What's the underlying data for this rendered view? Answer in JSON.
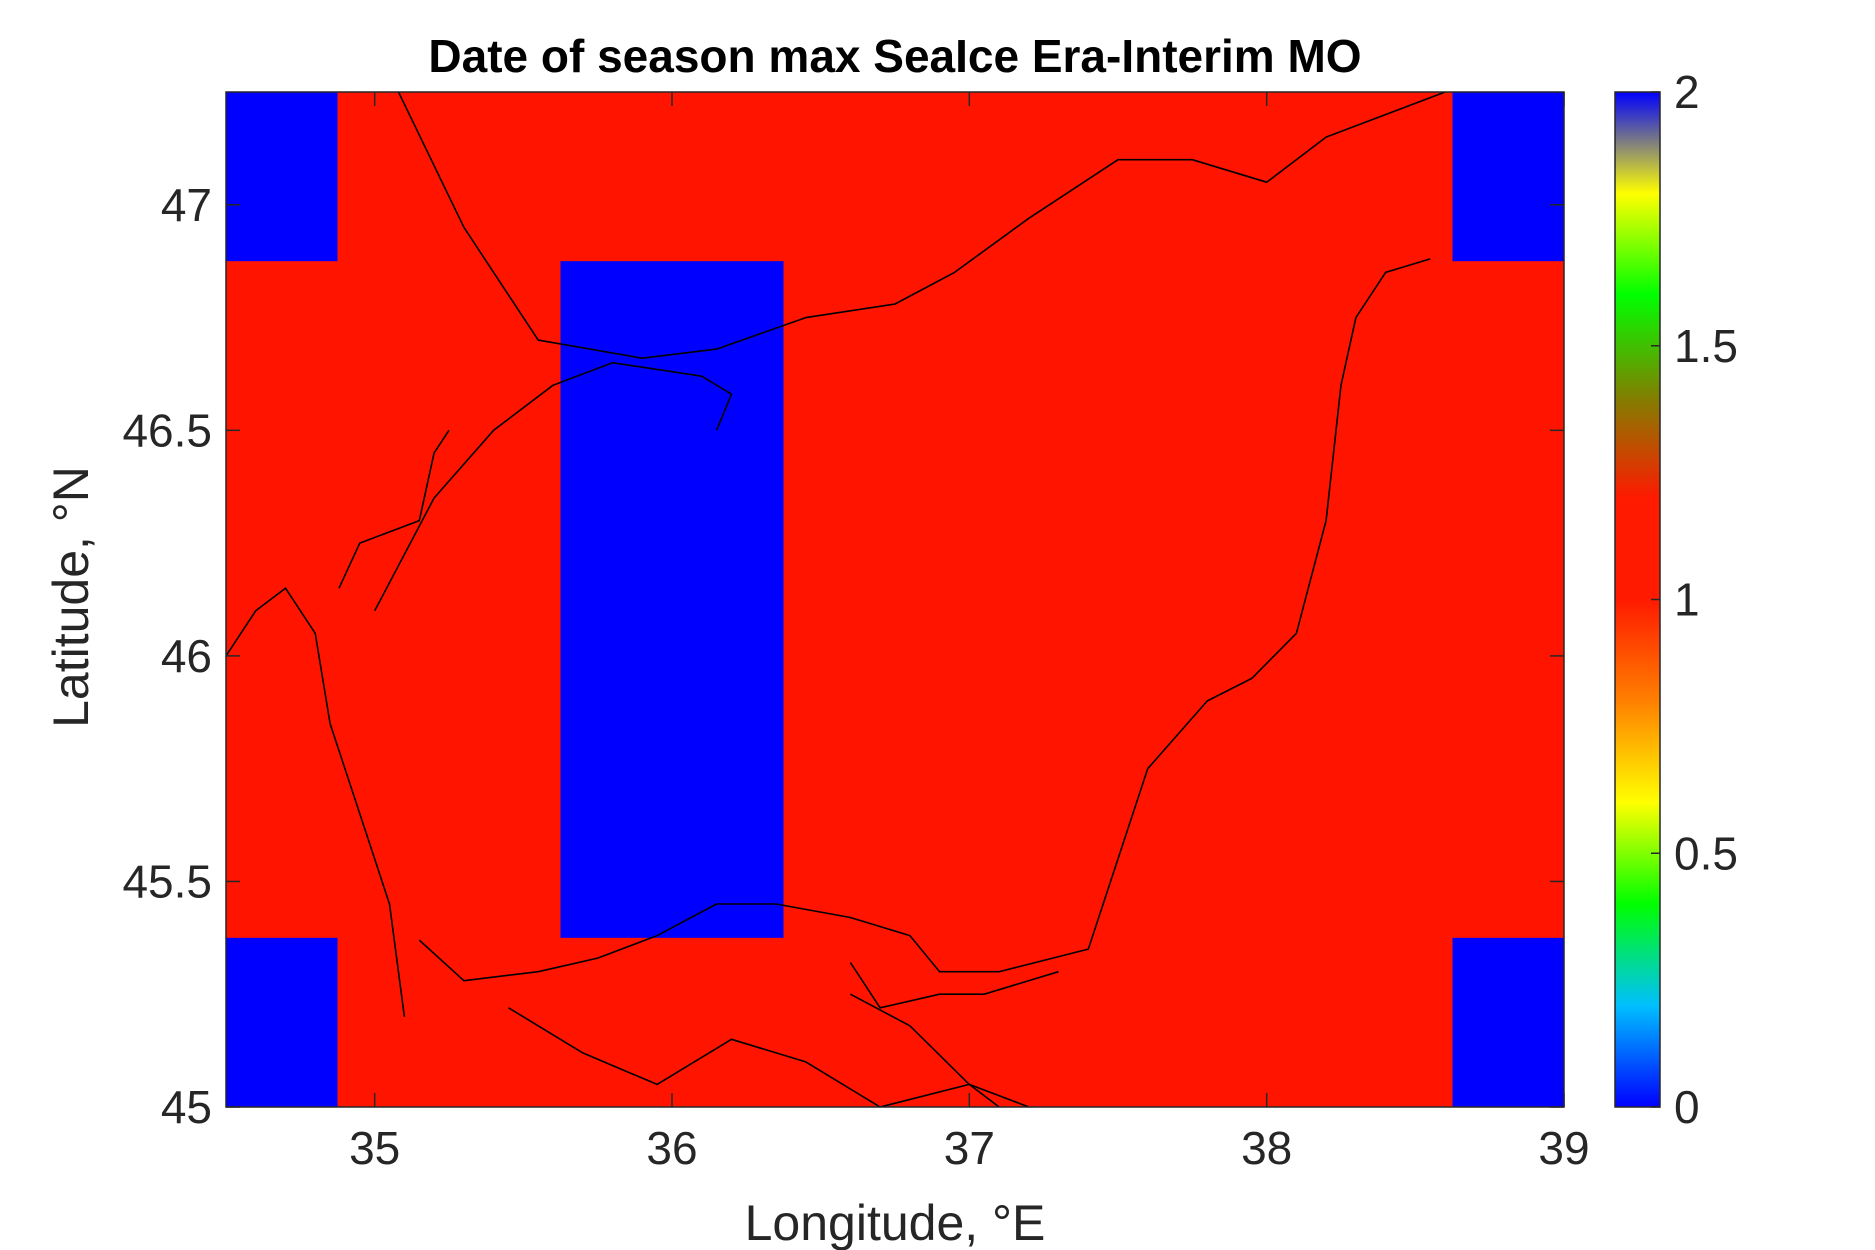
{
  "chart_data": {
    "type": "heatmap",
    "title": "Date of season max SeaIce Era-Interim MO",
    "xlabel": "Longitude, °E",
    "ylabel": "Latitude, °N",
    "xlim": [
      34.5,
      39
    ],
    "ylim": [
      45,
      47.25
    ],
    "xticks": [
      35,
      36,
      37,
      38,
      39
    ],
    "yticks": [
      45,
      45.5,
      46,
      46.5,
      47
    ],
    "xtick_labels": [
      "35",
      "36",
      "37",
      "38",
      "39"
    ],
    "ytick_labels": [
      "45",
      "45.5",
      "46",
      "46.5",
      "47"
    ],
    "colorbar": {
      "range": [
        0,
        2
      ],
      "ticks": [
        0,
        0.5,
        1,
        1.5,
        2
      ],
      "tick_labels": [
        "0",
        "0.5",
        "1",
        "1.5",
        "2"
      ],
      "stops": [
        "#0000ff",
        "#00c0ff",
        "#00ff00",
        "#ffff00",
        "#ff8000",
        "#ff1a00",
        "#ff1a00",
        "#808000",
        "#00ff00",
        "#ffff00",
        "#0000ff"
      ]
    },
    "background_value": 1,
    "background_color": "#ff1400",
    "cell_color": "#0000ff",
    "cells": [
      {
        "lon": [
          34.5,
          34.875
        ],
        "lat": [
          46.875,
          47.25
        ],
        "value": 2
      },
      {
        "lon": [
          38.625,
          39.0
        ],
        "lat": [
          46.875,
          47.25
        ],
        "value": 2
      },
      {
        "lon": [
          35.625,
          36.375
        ],
        "lat": [
          45.375,
          46.875
        ],
        "value": 2
      },
      {
        "lon": [
          34.5,
          34.875
        ],
        "lat": [
          45.0,
          45.375
        ],
        "value": 2
      },
      {
        "lon": [
          38.625,
          39.0
        ],
        "lat": [
          45.0,
          45.375
        ],
        "value": 2
      }
    ],
    "coastlines": [
      [
        [
          35.08,
          47.25
        ],
        [
          35.3,
          46.95
        ],
        [
          35.55,
          46.7
        ],
        [
          35.9,
          46.66
        ],
        [
          36.15,
          46.68
        ],
        [
          36.45,
          46.75
        ],
        [
          36.75,
          46.78
        ],
        [
          36.95,
          46.85
        ],
        [
          37.2,
          46.97
        ],
        [
          37.5,
          47.1
        ],
        [
          37.75,
          47.1
        ],
        [
          38.0,
          47.05
        ],
        [
          38.2,
          47.15
        ],
        [
          38.6,
          47.25
        ]
      ],
      [
        [
          38.55,
          46.88
        ],
        [
          38.4,
          46.85
        ],
        [
          38.3,
          46.75
        ],
        [
          38.25,
          46.6
        ],
        [
          38.2,
          46.3
        ],
        [
          38.1,
          46.05
        ],
        [
          37.95,
          45.95
        ],
        [
          37.8,
          45.9
        ],
        [
          37.6,
          45.75
        ],
        [
          37.5,
          45.55
        ],
        [
          37.4,
          45.35
        ],
        [
          37.1,
          45.3
        ],
        [
          36.9,
          45.3
        ],
        [
          36.8,
          45.38
        ],
        [
          36.6,
          45.42
        ],
        [
          36.35,
          45.45
        ],
        [
          36.15,
          45.45
        ],
        [
          35.95,
          45.38
        ],
        [
          35.75,
          45.33
        ],
        [
          35.55,
          45.3
        ],
        [
          35.3,
          45.28
        ],
        [
          35.15,
          45.37
        ]
      ],
      [
        [
          35.1,
          45.2
        ],
        [
          35.05,
          45.45
        ],
        [
          34.95,
          45.65
        ],
        [
          34.85,
          45.85
        ],
        [
          34.8,
          46.05
        ],
        [
          34.7,
          46.15
        ],
        [
          34.6,
          46.1
        ],
        [
          34.5,
          46.0
        ]
      ],
      [
        [
          35.0,
          46.1
        ],
        [
          35.2,
          46.35
        ],
        [
          35.4,
          46.5
        ],
        [
          35.6,
          46.6
        ],
        [
          35.8,
          46.65
        ],
        [
          36.1,
          46.62
        ],
        [
          36.2,
          46.58
        ],
        [
          36.15,
          46.5
        ]
      ],
      [
        [
          34.88,
          46.15
        ],
        [
          34.95,
          46.25
        ],
        [
          35.15,
          46.3
        ],
        [
          35.2,
          46.45
        ],
        [
          35.25,
          46.5
        ]
      ],
      [
        [
          35.45,
          45.22
        ],
        [
          35.7,
          45.12
        ],
        [
          35.95,
          45.05
        ],
        [
          36.2,
          45.15
        ],
        [
          36.45,
          45.1
        ],
        [
          36.7,
          45.0
        ],
        [
          37.0,
          45.05
        ],
        [
          37.2,
          45.0
        ]
      ],
      [
        [
          36.6,
          45.32
        ],
        [
          36.7,
          45.22
        ],
        [
          36.9,
          45.25
        ],
        [
          37.05,
          45.25
        ],
        [
          37.3,
          45.3
        ]
      ],
      [
        [
          37.1,
          45.0
        ],
        [
          37.0,
          45.05
        ],
        [
          36.8,
          45.18
        ],
        [
          36.6,
          45.25
        ]
      ]
    ]
  }
}
